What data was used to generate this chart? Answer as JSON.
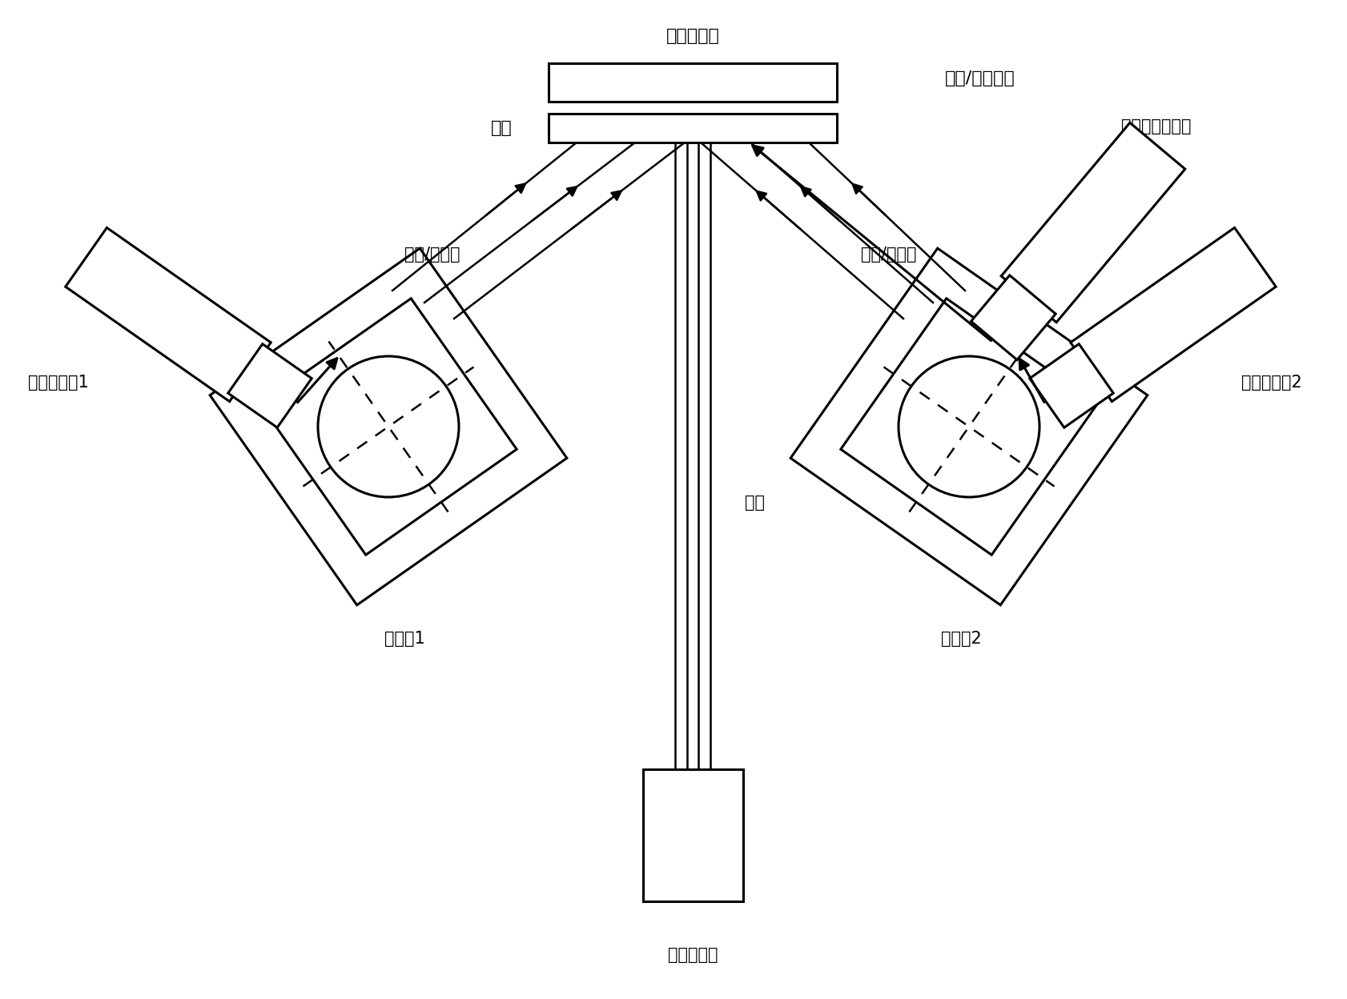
{
  "bg_color": "#ffffff",
  "line_color": "#000000",
  "lw": 2.2,
  "lw_beam": 1.8,
  "fs": 16,
  "label_heater": "电阵加热器",
  "label_substrate": "基片",
  "label_cleaning": "清洗/辅助轰击",
  "label_aux_source": "辅助清洗离子源",
  "label_sputter_l": "溅射/共溅射",
  "label_sputter_r": "溅射/共溅射",
  "label_etch": "刻蚀",
  "label_gun_l": "溅射离子源1",
  "label_gun_r": "溅射离子源2",
  "label_stage_l": "四靶台1",
  "label_stage_r": "四靶台2",
  "label_etch_src": "刻蚀离子源",
  "fig_w": 16.83,
  "fig_h": 12.48,
  "dpi": 100
}
